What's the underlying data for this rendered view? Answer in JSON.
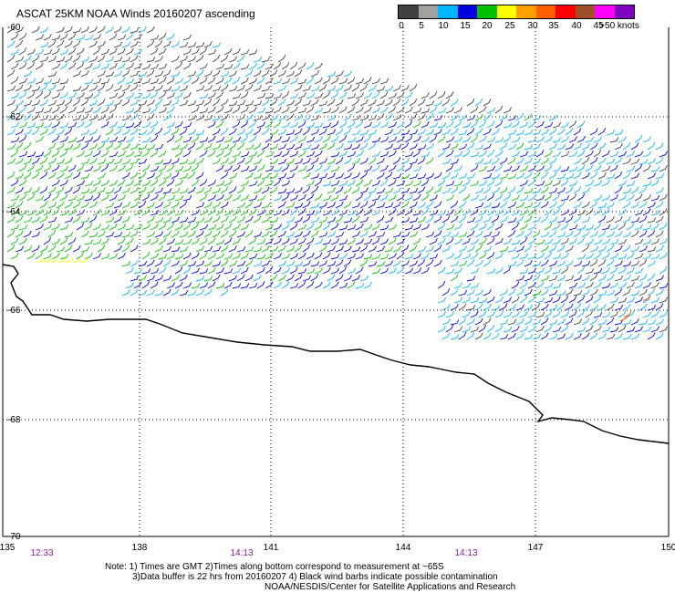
{
  "title": "ASCAT 25KM NOAA Winds 20160207 ascending",
  "legend": {
    "colors": [
      "#404040",
      "#a0a0a0",
      "#00b4ff",
      "#0000e0",
      "#00c000",
      "#ffff00",
      "#ffa000",
      "#ff6000",
      "#ff0000",
      "#a05028",
      "#ff00ff",
      "#8000c0"
    ],
    "labels": [
      "0",
      "5",
      "10",
      "15",
      "20",
      "25",
      "30",
      "35",
      "40",
      "45",
      ">50 knots"
    ]
  },
  "axes": {
    "lon_ticks": [
      "135",
      "138",
      "141",
      "144",
      "147",
      "150"
    ],
    "lat_ticks": [
      "-60",
      "-62",
      "-64",
      "-66",
      "-68",
      "-70"
    ]
  },
  "times": [
    "12:33",
    "14:13",
    "14:13"
  ],
  "notes": {
    "line1": "Note: 1) Times are GMT 2)Times along bottom correspond to measurement at ~65S",
    "line2": "3)Data buffer is 22 hrs from 20160207 4) Black wind barbs indicate possible contamination",
    "line3": "NOAA/NESDIS/Center for Satellite Applications and Research"
  }
}
